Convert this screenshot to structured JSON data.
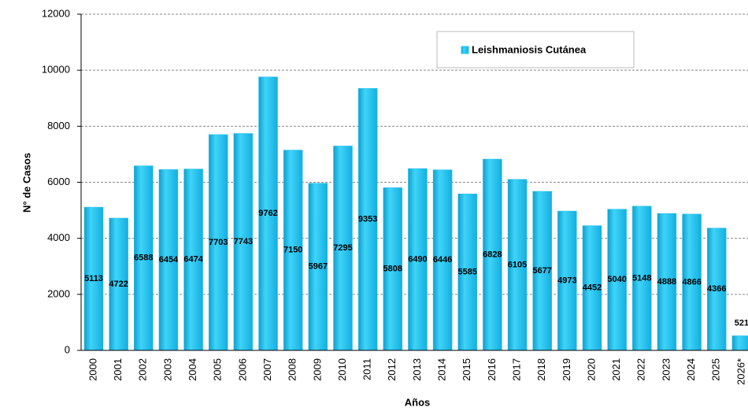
{
  "chart_data": {
    "type": "bar",
    "categories": [
      "2000",
      "2001",
      "2002",
      "2003",
      "2004",
      "2005",
      "2006",
      "2007",
      "2008",
      "2009",
      "2010",
      "2011",
      "2012",
      "2013",
      "2014",
      "2015",
      "2016",
      "2017",
      "2018",
      "2019",
      "2020",
      "2021",
      "2022",
      "2023",
      "2024",
      "2025",
      "2026*"
    ],
    "series": [
      {
        "name": "Leishmaniosis Cutánea",
        "color": "#29c5ef",
        "values": [
          5113,
          4722,
          6588,
          6454,
          6474,
          7703,
          7743,
          9762,
          7150,
          5967,
          7295,
          9353,
          5808,
          6490,
          6446,
          5585,
          6828,
          6105,
          5677,
          4973,
          4452,
          5040,
          5148,
          4888,
          4866,
          4366,
          521
        ]
      }
    ],
    "ylim": [
      0,
      12000
    ],
    "yticks": [
      0,
      2000,
      4000,
      6000,
      8000,
      10000,
      12000
    ],
    "xlabel": "Años",
    "ylabel": "N° de Casos",
    "grid": true,
    "legend": "top"
  }
}
